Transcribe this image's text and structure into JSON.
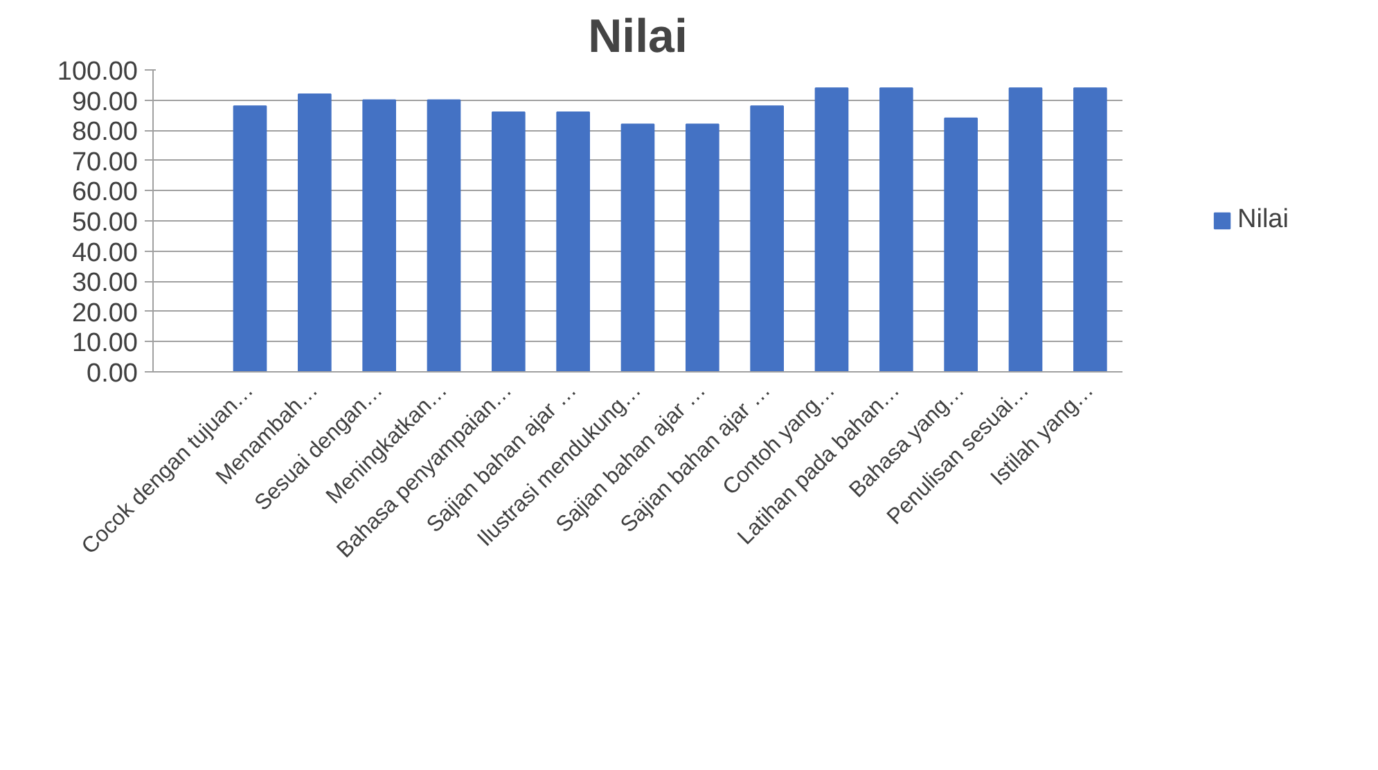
{
  "chart_data": {
    "type": "bar",
    "title": "Nilai",
    "categories": [
      null,
      "Cocok dengan tujuan…",
      "Menambah…",
      "Sesuai dengan…",
      "Meningkatkan…",
      "Bahasa penyampaian…",
      "Sajian bahan ajar …",
      "Ilustrasi mendukung…",
      "Sajian bahan ajar …",
      "Sajian bahan ajar …",
      "Contoh yang…",
      "Latihan pada bahan…",
      "Bahasa yang…",
      "Penulisan sesuai…",
      "Istilah yang…"
    ],
    "series": [
      {
        "name": "Nilai",
        "color": "#4472c4",
        "values": [
          null,
          88,
          92,
          90,
          90,
          86,
          86,
          82,
          82,
          88,
          94,
          94,
          84,
          94,
          94
        ]
      }
    ],
    "ylim": [
      0,
      100
    ],
    "yticks": [
      {
        "value": 0,
        "label": "0.00"
      },
      {
        "value": 10,
        "label": "10.00"
      },
      {
        "value": 20,
        "label": "20.00"
      },
      {
        "value": 30,
        "label": "30.00"
      },
      {
        "value": 40,
        "label": "40.00"
      },
      {
        "value": 50,
        "label": "50.00"
      },
      {
        "value": 60,
        "label": "60.00"
      },
      {
        "value": 70,
        "label": "70.00"
      },
      {
        "value": 80,
        "label": "80.00"
      },
      {
        "value": 90,
        "label": "90.00"
      },
      {
        "value": 100,
        "label": "100.00"
      }
    ],
    "grid": "y",
    "legend": "right"
  }
}
